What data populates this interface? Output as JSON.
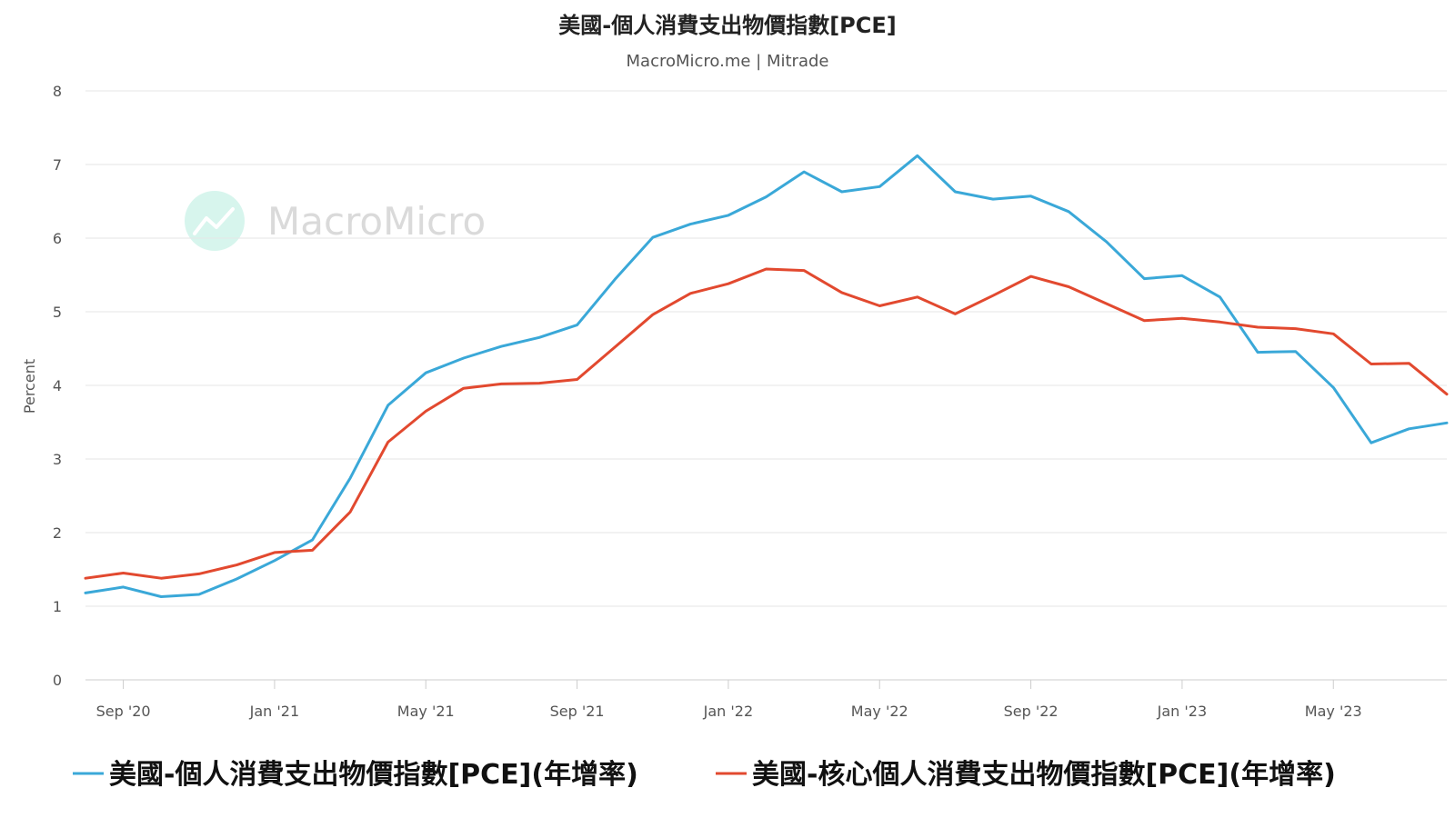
{
  "chart_data": {
    "type": "line",
    "title": "美國-個人消費支出物價指數[PCE]",
    "subtitle": "MacroMicro.me | Mitrade",
    "watermark": "MacroMicro",
    "ylabel": "Percent",
    "xlabel": "",
    "ylim": [
      0,
      8
    ],
    "yticks": [
      0,
      1,
      2,
      3,
      4,
      5,
      6,
      7,
      8
    ],
    "grid": true,
    "legend_position": "bottom",
    "x_start": "2020-08",
    "x_ticks": [
      {
        "label": "Sep '20",
        "index": 1
      },
      {
        "label": "Jan '21",
        "index": 5
      },
      {
        "label": "May '21",
        "index": 9
      },
      {
        "label": "Sep '21",
        "index": 13
      },
      {
        "label": "Jan '22",
        "index": 17
      },
      {
        "label": "May '22",
        "index": 21
      },
      {
        "label": "Sep '22",
        "index": 25
      },
      {
        "label": "Jan '23",
        "index": 29
      },
      {
        "label": "May '23",
        "index": 33
      }
    ],
    "series": [
      {
        "name": "美國-個人消費支出物價指數[PCE](年增率)",
        "color": "#3aa8d8",
        "values": [
          1.18,
          1.26,
          1.13,
          1.16,
          1.37,
          1.62,
          1.9,
          2.74,
          3.73,
          4.17,
          4.37,
          4.53,
          4.65,
          4.82,
          5.44,
          6.01,
          6.19,
          6.31,
          6.56,
          6.9,
          6.63,
          6.7,
          7.12,
          6.63,
          6.53,
          6.57,
          6.36,
          5.95,
          5.45,
          5.49,
          5.2,
          4.45,
          4.46,
          3.97,
          3.22,
          3.41,
          3.49
        ]
      },
      {
        "name": "美國-核心個人消費支出物價指數[PCE](年增率)",
        "color": "#e2492f",
        "values": [
          1.38,
          1.45,
          1.38,
          1.44,
          1.56,
          1.73,
          1.76,
          2.28,
          3.23,
          3.65,
          3.96,
          4.02,
          4.03,
          4.08,
          4.52,
          4.96,
          5.25,
          5.38,
          5.58,
          5.56,
          5.26,
          5.08,
          5.2,
          4.97,
          5.22,
          5.48,
          5.34,
          5.11,
          4.88,
          4.91,
          4.86,
          4.79,
          4.77,
          4.7,
          4.29,
          4.3,
          3.88
        ]
      }
    ]
  }
}
